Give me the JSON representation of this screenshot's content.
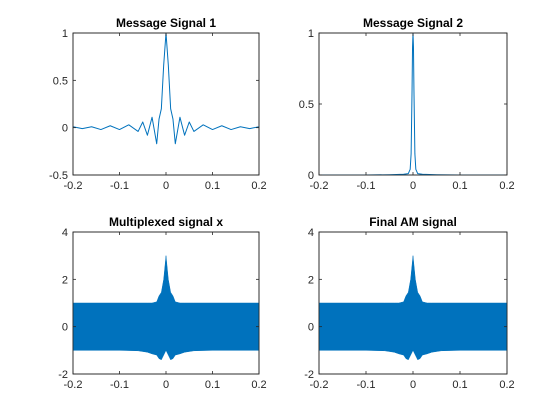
{
  "chart_data": [
    {
      "type": "line",
      "title": "Message Signal 1",
      "xlim": [
        -0.2,
        0.2
      ],
      "ylim": [
        -0.5,
        1
      ],
      "xticks": [
        -0.2,
        -0.1,
        0,
        0.1,
        0.2
      ],
      "xtick_labels": [
        "-0.2",
        "-0.1",
        "0",
        "0.1",
        "0.2"
      ],
      "yticks": [
        -0.5,
        0,
        0.5,
        1
      ],
      "ytick_labels": [
        "-0.5",
        "0",
        "0.5",
        "1"
      ],
      "grid": false,
      "line_color": "#0072BD",
      "series": [
        {
          "x": [
            -0.2,
            -0.18,
            -0.16,
            -0.14,
            -0.12,
            -0.1,
            -0.08,
            -0.06,
            -0.05,
            -0.04,
            -0.03,
            -0.02,
            -0.015,
            -0.01,
            -0.005,
            0,
            0.005,
            0.01,
            0.015,
            0.02,
            0.03,
            0.04,
            0.05,
            0.06,
            0.08,
            0.1,
            0.12,
            0.14,
            0.16,
            0.18,
            0.2
          ],
          "y": [
            0.01,
            -0.01,
            0.01,
            -0.02,
            0.02,
            -0.02,
            0.03,
            -0.04,
            0.06,
            -0.08,
            0.11,
            -0.17,
            0.09,
            0.2,
            0.66,
            1,
            0.66,
            0.2,
            0.09,
            -0.17,
            0.11,
            -0.08,
            0.06,
            -0.04,
            0.03,
            -0.02,
            0.02,
            -0.02,
            0.01,
            -0.01,
            0.01
          ]
        }
      ]
    },
    {
      "type": "line",
      "title": "Message Signal 2",
      "xlim": [
        -0.2,
        0.2
      ],
      "ylim": [
        0,
        1
      ],
      "xticks": [
        -0.2,
        -0.1,
        0,
        0.1,
        0.2
      ],
      "xtick_labels": [
        "-0.2",
        "-0.1",
        "0",
        "0.1",
        "0.2"
      ],
      "yticks": [
        0,
        0.5,
        1
      ],
      "ytick_labels": [
        "0",
        "0.5",
        "1"
      ],
      "grid": false,
      "line_color": "#0072BD",
      "series": [
        {
          "x": [
            -0.2,
            -0.1,
            -0.05,
            -0.02,
            -0.01,
            -0.006,
            -0.004,
            -0.002,
            -0.001,
            0,
            0.001,
            0.002,
            0.004,
            0.006,
            0.01,
            0.02,
            0.05,
            0.1,
            0.2
          ],
          "y": [
            0,
            0,
            0.002,
            0.005,
            0.01,
            0.04,
            0.15,
            0.6,
            0.9,
            1,
            0.9,
            0.6,
            0.15,
            0.04,
            0.01,
            0.005,
            0.002,
            0,
            0
          ]
        }
      ]
    },
    {
      "type": "line",
      "title": "Multiplexed signal x",
      "xlim": [
        -0.2,
        0.2
      ],
      "ylim": [
        -2,
        4
      ],
      "xticks": [
        -0.2,
        -0.1,
        0,
        0.1,
        0.2
      ],
      "xtick_labels": [
        "-0.2",
        "-0.1",
        "0",
        "0.1",
        "0.2"
      ],
      "yticks": [
        -2,
        0,
        2,
        4
      ],
      "ytick_labels": [
        "-2",
        "0",
        "2",
        "4"
      ],
      "grid": false,
      "line_color": "#0072BD",
      "fill_band": {
        "x": [
          -0.2,
          -0.1,
          -0.06,
          -0.04,
          -0.03,
          -0.02,
          -0.015,
          -0.01,
          -0.005,
          0,
          0.005,
          0.01,
          0.015,
          0.02,
          0.03,
          0.04,
          0.06,
          0.1,
          0.2
        ],
        "upper": [
          1.0,
          1.0,
          1.0,
          1.0,
          1.0,
          1.05,
          1.3,
          1.45,
          2.0,
          3.0,
          2.0,
          1.45,
          1.3,
          1.05,
          1.0,
          1.0,
          1.0,
          1.0,
          1.0
        ],
        "lower": [
          -1.0,
          -1.0,
          -1.02,
          -1.08,
          -1.15,
          -1.2,
          -1.35,
          -1.4,
          -1.2,
          -1.0,
          -1.2,
          -1.4,
          -1.35,
          -1.2,
          -1.15,
          -1.08,
          -1.02,
          -1.0,
          -1.0
        ]
      }
    },
    {
      "type": "line",
      "title": "Final AM signal",
      "xlim": [
        -0.2,
        0.2
      ],
      "ylim": [
        -2,
        4
      ],
      "xticks": [
        -0.2,
        -0.1,
        0,
        0.1,
        0.2
      ],
      "xtick_labels": [
        "-0.2",
        "-0.1",
        "0",
        "0.1",
        "0.2"
      ],
      "yticks": [
        -2,
        0,
        2,
        4
      ],
      "ytick_labels": [
        "-2",
        "0",
        "2",
        "4"
      ],
      "grid": false,
      "line_color": "#0072BD",
      "fill_band": {
        "x": [
          -0.2,
          -0.1,
          -0.06,
          -0.04,
          -0.03,
          -0.02,
          -0.015,
          -0.01,
          -0.005,
          0,
          0.005,
          0.01,
          0.015,
          0.02,
          0.03,
          0.04,
          0.06,
          0.1,
          0.2
        ],
        "upper": [
          1.0,
          1.0,
          1.0,
          1.0,
          1.0,
          1.05,
          1.3,
          1.45,
          2.0,
          3.0,
          2.0,
          1.45,
          1.3,
          1.05,
          1.0,
          1.0,
          1.0,
          1.0,
          1.0
        ],
        "lower": [
          -1.0,
          -1.0,
          -1.02,
          -1.08,
          -1.15,
          -1.2,
          -1.35,
          -1.4,
          -1.2,
          -1.0,
          -1.2,
          -1.4,
          -1.35,
          -1.2,
          -1.15,
          -1.08,
          -1.02,
          -1.0,
          -1.0
        ]
      }
    }
  ]
}
